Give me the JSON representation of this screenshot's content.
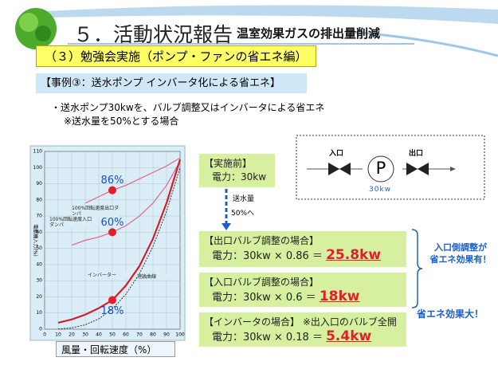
{
  "header": {
    "title": "５．活動状況報告",
    "subtitle": "温室効果ガスの排出量削減"
  },
  "section": "（３）勉強会実施（ポンプ・ファンの省エネ編）",
  "case_title": "【事例③：送水ポンプ インバータ化による省エネ】",
  "bullets": [
    "・送水ポンプ30kwを、バルブ調整又はインバータによる省エネ",
    "※送水量を50%とする場合"
  ],
  "chart_data": {
    "type": "line",
    "ylabel": "電動機入力(%)",
    "xlabel": "風量・回転速度（%）",
    "xlim": [
      0,
      100
    ],
    "ylim": [
      0,
      110
    ],
    "xticks": [
      0,
      10,
      20,
      30,
      40,
      50,
      60,
      70,
      80,
      90,
      100
    ],
    "yticks": [
      0,
      10,
      20,
      30,
      40,
      50,
      60,
      70,
      80,
      90,
      100,
      110
    ],
    "grid": true,
    "series": [
      {
        "name": "100%回転速度出口ダンパ",
        "color": "#e8608a",
        "x": [
          30,
          40,
          50,
          60,
          70,
          80,
          90,
          100
        ],
        "values": [
          78,
          82,
          86,
          89,
          93,
          97,
          101,
          106
        ]
      },
      {
        "name": "100%回転速度入口ダンパ",
        "color": "#e8608a",
        "x": [
          20,
          30,
          40,
          50,
          60,
          70,
          80,
          90,
          100
        ],
        "values": [
          52,
          55,
          57,
          60,
          64,
          70,
          78,
          89,
          104
        ]
      },
      {
        "name": "インバーター",
        "color": "#d0202a",
        "x": [
          10,
          20,
          30,
          40,
          50,
          60,
          70,
          80,
          90,
          100
        ],
        "values": [
          4,
          6,
          9,
          13,
          18,
          27,
          39,
          56,
          78,
          105
        ]
      },
      {
        "name": "理論曲線",
        "color": "#333333",
        "dashed": true,
        "x": [
          10,
          20,
          30,
          40,
          50,
          60,
          70,
          80,
          90,
          100
        ],
        "values": [
          0.1,
          0.8,
          2.7,
          6.4,
          12.5,
          21.6,
          34.3,
          51.2,
          72.9,
          100
        ]
      }
    ],
    "points": {
      "color": "#e0202a",
      "x": [
        50,
        50,
        50
      ],
      "values": [
        86,
        60,
        18
      ],
      "value_labels": [
        "86%",
        "60%",
        "18%"
      ]
    }
  },
  "before": {
    "title": "【実施前】",
    "power": "電力：30kw"
  },
  "arrow": {
    "line1": "送水量",
    "line2": "50%へ"
  },
  "diagram": {
    "inlet": "入口",
    "outlet": "出口",
    "pump": "P",
    "rating": "30kw"
  },
  "cases": [
    {
      "title": "【出口バルブ調整の場合】",
      "formula": "電力：30kw × 0.86 ＝",
      "result": "25.8kw"
    },
    {
      "title": "【入口バルブ調整の場合】",
      "formula": "電力：30kw × 0.6 ＝",
      "result": "18kw"
    },
    {
      "title": "【インバータの場合】 ※出入口のバルブ全開",
      "formula": "電力：30kw × 0.18 ＝",
      "result": "5.4kw"
    }
  ],
  "notes": {
    "inlet_effect_1": "入口側調整が",
    "inlet_effect_2": "省エネ効果有！",
    "inverter_effect": "省エネ効果大！"
  }
}
